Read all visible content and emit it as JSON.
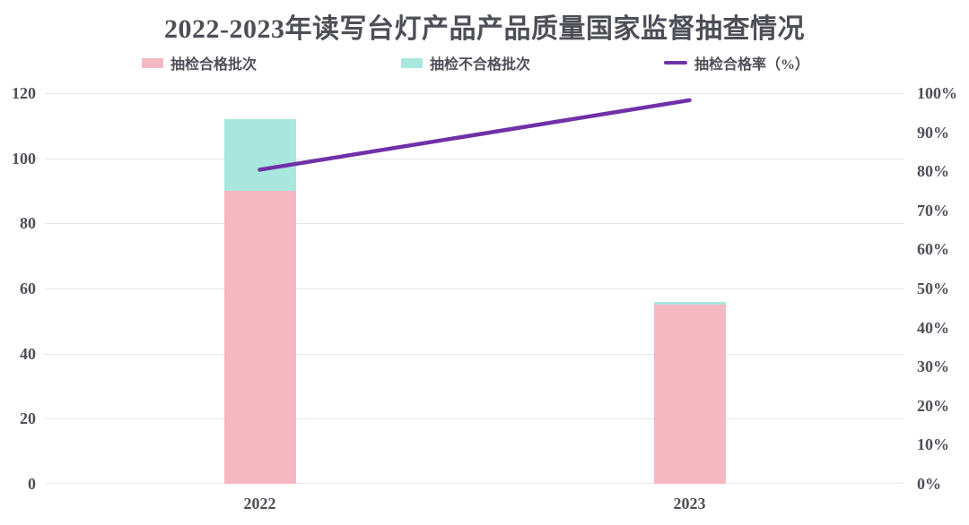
{
  "title": "2022-2023年读写台灯产品产品质量国家监督抽查情况",
  "colors": {
    "qualified": "#f5b8c3",
    "unqualified": "#a9e7de",
    "rate_line": "#7030a8",
    "text": "#4e4e57",
    "grid": "#e6e6e6"
  },
  "legend": [
    {
      "label": "抽检合格批次",
      "swatch": "box",
      "color_key": "qualified"
    },
    {
      "label": "抽检不合格批次",
      "swatch": "box",
      "color_key": "unqualified"
    },
    {
      "label": "抽检合格率（%）",
      "swatch": "line",
      "color_key": "rate_line"
    }
  ],
  "chart_data": {
    "type": "bar",
    "subtype": "stacked-bar-with-line",
    "title": "2022-2023年读写台灯产品产品质量国家监督抽查情况",
    "categories": [
      "2022",
      "2023"
    ],
    "series": [
      {
        "name": "抽检合格批次",
        "type": "bar",
        "stack": true,
        "axis": "left",
        "values": [
          90,
          55
        ]
      },
      {
        "name": "抽检不合格批次",
        "type": "bar",
        "stack": true,
        "axis": "left",
        "values": [
          22,
          1
        ]
      },
      {
        "name": "抽检合格率（%）",
        "type": "line",
        "axis": "right",
        "values": [
          80.4,
          98.2
        ]
      }
    ],
    "stack_totals": [
      112,
      56
    ],
    "left_axis": {
      "min": 0,
      "max": 120,
      "step": 20,
      "ticks": [
        0,
        20,
        40,
        60,
        80,
        100,
        120
      ]
    },
    "right_axis": {
      "min": 0,
      "max": 100,
      "step": 10,
      "tick_labels": [
        "0%",
        "10%",
        "20%",
        "30%",
        "40%",
        "50%",
        "60%",
        "70%",
        "80%",
        "90%",
        "100%"
      ]
    },
    "grid": "horizontal",
    "legend_position": "top",
    "xlabel": "",
    "ylabel": ""
  }
}
